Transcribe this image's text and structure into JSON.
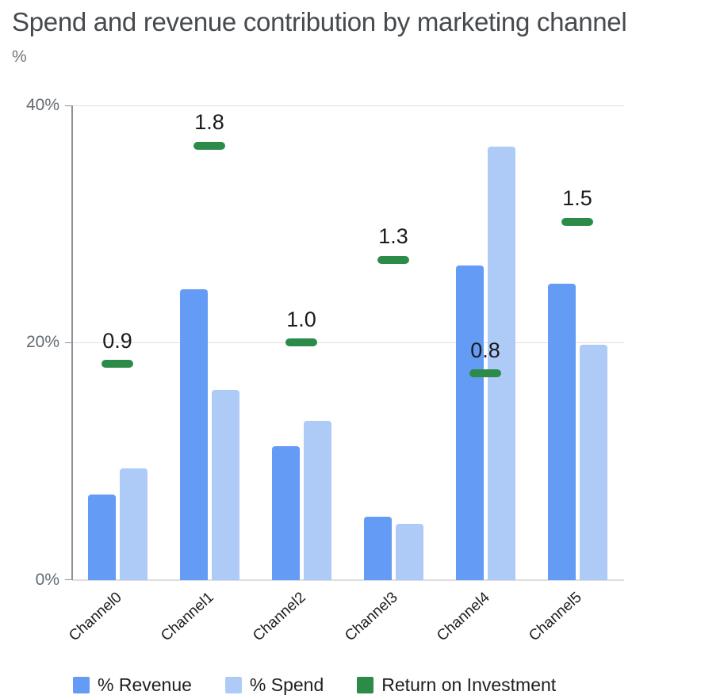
{
  "header": {
    "title": "Spend and revenue contribution by marketing channel",
    "unit_label": "%"
  },
  "chart_data": {
    "type": "bar",
    "title": "Spend and revenue contribution by marketing channel",
    "xlabel": "",
    "ylabel": "%",
    "ylim": [
      0,
      40
    ],
    "yticks": [
      {
        "label": "0%",
        "value": 0
      },
      {
        "label": "20%",
        "value": 20
      },
      {
        "label": "40%",
        "value": 40
      }
    ],
    "grid": true,
    "legend_position": "bottom",
    "categories": [
      "Channel0",
      "Channel1",
      "Channel2",
      "Channel3",
      "Channel4",
      "Channel5"
    ],
    "series": [
      {
        "name": "% Revenue",
        "type": "bar",
        "color": "#639bf5",
        "values": [
          7.2,
          24.5,
          11.3,
          5.3,
          26.5,
          25.0
        ]
      },
      {
        "name": "% Spend",
        "type": "bar",
        "color": "#aecbf7",
        "values": [
          9.4,
          16.0,
          13.4,
          4.7,
          36.5,
          19.8
        ]
      },
      {
        "name": "Return on Investment",
        "type": "dash-marker",
        "color": "#2d8b4a",
        "value_labels": [
          "0.9",
          "1.8",
          "1.0",
          "1.3",
          "0.8",
          "1.5"
        ],
        "axis_positions_pct": [
          18.2,
          36.6,
          20.0,
          27.0,
          17.4,
          30.2
        ]
      }
    ]
  },
  "legend": {
    "items": [
      {
        "label": "% Revenue",
        "color": "#639bf5"
      },
      {
        "label": "% Spend",
        "color": "#aecbf7"
      },
      {
        "label": "Return on Investment",
        "color": "#2d8b4a"
      }
    ]
  },
  "colors": {
    "background": "#ffffff",
    "title_text": "#46494d",
    "subtitle_text": "#73787c",
    "y_axis_labels": "#616b72",
    "x_axis_labels": "#1d1d1d",
    "axis_line": "#8a9297",
    "gridline": "#e0e0e0",
    "roi_value_text": "#1b1b1b"
  }
}
